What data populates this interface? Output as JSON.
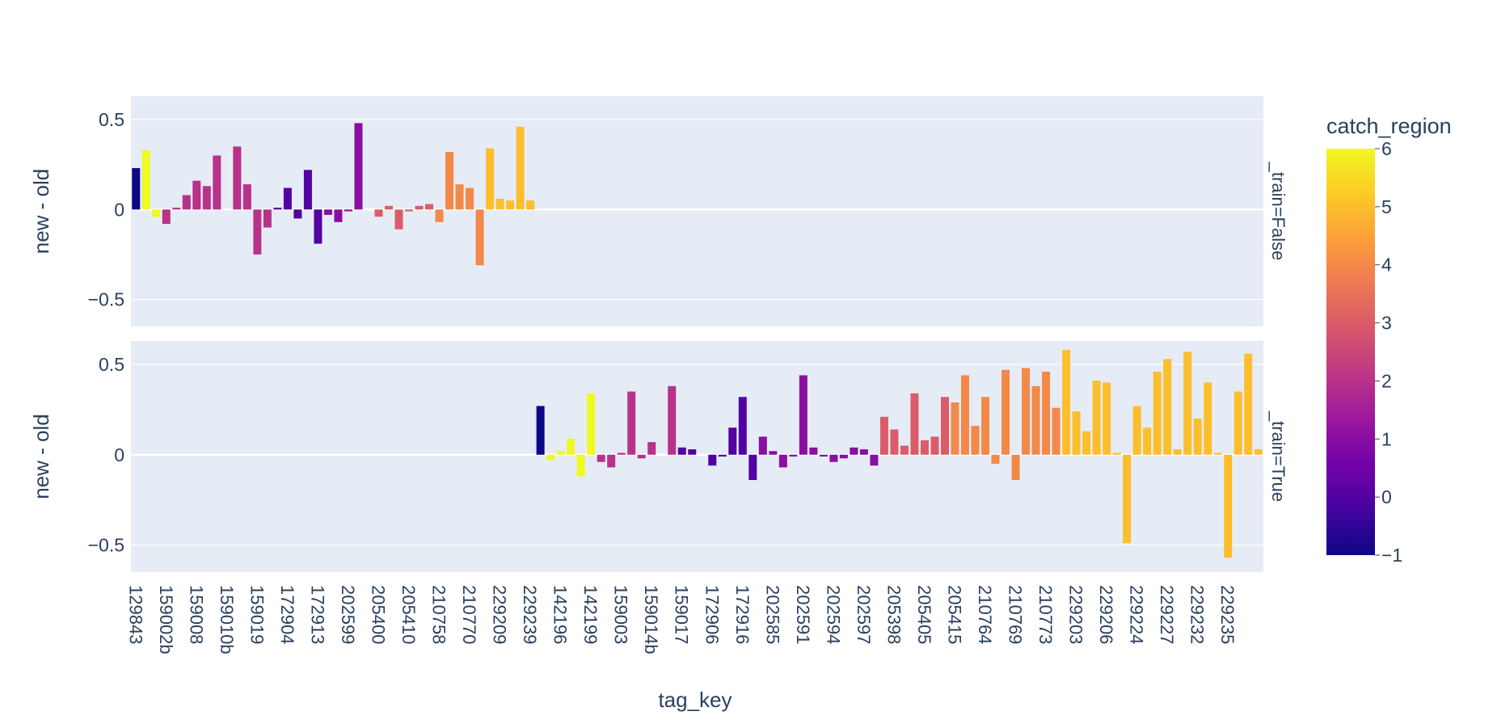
{
  "chart_data": {
    "type": "bar",
    "xlabel": "tag_key",
    "ylabel": "new - old",
    "ylim": [
      -0.65,
      0.63
    ],
    "yticks": [
      -0.5,
      0,
      0.5
    ],
    "ytick_labels": [
      "−0.5",
      "0",
      "0.5"
    ],
    "xtick_labels": [
      "129843",
      "159002b",
      "159008",
      "159010b",
      "159019",
      "172904",
      "172913",
      "202599",
      "205400",
      "205410",
      "210758",
      "210770",
      "229209",
      "229239",
      "142196",
      "142199",
      "159003",
      "159014b",
      "159017",
      "172906",
      "172916",
      "202585",
      "202591",
      "202594",
      "202597",
      "205398",
      "205405",
      "205415",
      "210764",
      "210769",
      "210773",
      "229203",
      "229206",
      "229224",
      "229227",
      "229232",
      "229235"
    ],
    "facets": [
      {
        "label": "_train=False",
        "bars": [
          {
            "c": 0,
            "v": 0.23,
            "r": -1
          },
          {
            "c": 1,
            "v": 0.33,
            "r": 6
          },
          {
            "c": 2,
            "v": -0.04,
            "r": 6
          },
          {
            "c": 3,
            "v": -0.08,
            "r": 2
          },
          {
            "c": 4,
            "v": 0.01,
            "r": 2
          },
          {
            "c": 5,
            "v": 0.08,
            "r": 2
          },
          {
            "c": 6,
            "v": 0.16,
            "r": 2
          },
          {
            "c": 7,
            "v": 0.13,
            "r": 2
          },
          {
            "c": 8,
            "v": 0.3,
            "r": 2
          },
          {
            "c": 10,
            "v": 0.35,
            "r": 2
          },
          {
            "c": 11,
            "v": 0.14,
            "r": 2
          },
          {
            "c": 12,
            "v": -0.25,
            "r": 2
          },
          {
            "c": 13,
            "v": -0.1,
            "r": 2
          },
          {
            "c": 14,
            "v": 0.01,
            "r": 0
          },
          {
            "c": 15,
            "v": 0.12,
            "r": 0
          },
          {
            "c": 16,
            "v": -0.05,
            "r": 0
          },
          {
            "c": 17,
            "v": 0.22,
            "r": 0
          },
          {
            "c": 18,
            "v": -0.19,
            "r": 0
          },
          {
            "c": 19,
            "v": -0.03,
            "r": 1
          },
          {
            "c": 20,
            "v": -0.07,
            "r": 1
          },
          {
            "c": 21,
            "v": -0.01,
            "r": 1
          },
          {
            "c": 22,
            "v": 0.48,
            "r": 1
          },
          {
            "c": 24,
            "v": -0.04,
            "r": 3
          },
          {
            "c": 25,
            "v": 0.02,
            "r": 3
          },
          {
            "c": 26,
            "v": -0.11,
            "r": 3
          },
          {
            "c": 27,
            "v": -0.01,
            "r": 3
          },
          {
            "c": 28,
            "v": 0.02,
            "r": 3
          },
          {
            "c": 29,
            "v": 0.03,
            "r": 3
          },
          {
            "c": 30,
            "v": -0.07,
            "r": 4
          },
          {
            "c": 31,
            "v": 0.32,
            "r": 4
          },
          {
            "c": 32,
            "v": 0.14,
            "r": 4
          },
          {
            "c": 33,
            "v": 0.12,
            "r": 4
          },
          {
            "c": 34,
            "v": -0.31,
            "r": 4
          },
          {
            "c": 35,
            "v": 0.34,
            "r": 5
          },
          {
            "c": 36,
            "v": 0.06,
            "r": 5
          },
          {
            "c": 37,
            "v": 0.05,
            "r": 5
          },
          {
            "c": 38,
            "v": 0.46,
            "r": 5
          },
          {
            "c": 39,
            "v": 0.05,
            "r": 5
          }
        ]
      },
      {
        "label": "_train=True",
        "bars": [
          {
            "c": 40,
            "v": 0.27,
            "r": -1
          },
          {
            "c": 41,
            "v": -0.03,
            "r": 6
          },
          {
            "c": 42,
            "v": 0.02,
            "r": 6
          },
          {
            "c": 43,
            "v": 0.09,
            "r": 6
          },
          {
            "c": 44,
            "v": -0.12,
            "r": 6
          },
          {
            "c": 45,
            "v": 0.34,
            "r": 6
          },
          {
            "c": 46,
            "v": -0.04,
            "r": 2
          },
          {
            "c": 47,
            "v": -0.07,
            "r": 2
          },
          {
            "c": 48,
            "v": 0.01,
            "r": 2
          },
          {
            "c": 49,
            "v": 0.35,
            "r": 2
          },
          {
            "c": 50,
            "v": -0.02,
            "r": 2
          },
          {
            "c": 51,
            "v": 0.07,
            "r": 2
          },
          {
            "c": 53,
            "v": 0.38,
            "r": 2
          },
          {
            "c": 54,
            "v": 0.04,
            "r": 0
          },
          {
            "c": 55,
            "v": 0.03,
            "r": 0
          },
          {
            "c": 57,
            "v": -0.06,
            "r": 0
          },
          {
            "c": 58,
            "v": -0.01,
            "r": 0
          },
          {
            "c": 59,
            "v": 0.15,
            "r": 0
          },
          {
            "c": 60,
            "v": 0.32,
            "r": 0
          },
          {
            "c": 61,
            "v": -0.14,
            "r": 0
          },
          {
            "c": 62,
            "v": 0.1,
            "r": 1
          },
          {
            "c": 63,
            "v": 0.02,
            "r": 1
          },
          {
            "c": 64,
            "v": -0.07,
            "r": 1
          },
          {
            "c": 65,
            "v": -0.01,
            "r": 1
          },
          {
            "c": 66,
            "v": 0.44,
            "r": 1
          },
          {
            "c": 67,
            "v": 0.04,
            "r": 1
          },
          {
            "c": 68,
            "v": -0.01,
            "r": 1
          },
          {
            "c": 69,
            "v": -0.04,
            "r": 1
          },
          {
            "c": 70,
            "v": -0.02,
            "r": 1
          },
          {
            "c": 71,
            "v": 0.04,
            "r": 1
          },
          {
            "c": 72,
            "v": 0.03,
            "r": 1
          },
          {
            "c": 73,
            "v": -0.06,
            "r": 1
          },
          {
            "c": 74,
            "v": 0.21,
            "r": 3
          },
          {
            "c": 75,
            "v": 0.14,
            "r": 3
          },
          {
            "c": 76,
            "v": 0.05,
            "r": 3
          },
          {
            "c": 77,
            "v": 0.34,
            "r": 3
          },
          {
            "c": 78,
            "v": 0.08,
            "r": 3
          },
          {
            "c": 79,
            "v": 0.1,
            "r": 3
          },
          {
            "c": 80,
            "v": 0.32,
            "r": 3
          },
          {
            "c": 81,
            "v": 0.29,
            "r": 4
          },
          {
            "c": 82,
            "v": 0.44,
            "r": 4
          },
          {
            "c": 83,
            "v": 0.16,
            "r": 4
          },
          {
            "c": 84,
            "v": 0.32,
            "r": 4
          },
          {
            "c": 85,
            "v": -0.05,
            "r": 4
          },
          {
            "c": 86,
            "v": 0.47,
            "r": 4
          },
          {
            "c": 87,
            "v": -0.14,
            "r": 4
          },
          {
            "c": 88,
            "v": 0.48,
            "r": 4
          },
          {
            "c": 89,
            "v": 0.38,
            "r": 4
          },
          {
            "c": 90,
            "v": 0.46,
            "r": 4
          },
          {
            "c": 91,
            "v": 0.26,
            "r": 4
          },
          {
            "c": 92,
            "v": 0.58,
            "r": 5
          },
          {
            "c": 93,
            "v": 0.24,
            "r": 5
          },
          {
            "c": 94,
            "v": 0.13,
            "r": 5
          },
          {
            "c": 95,
            "v": 0.41,
            "r": 5
          },
          {
            "c": 96,
            "v": 0.4,
            "r": 5
          },
          {
            "c": 97,
            "v": 0.01,
            "r": 5
          },
          {
            "c": 98,
            "v": -0.49,
            "r": 5
          },
          {
            "c": 99,
            "v": 0.27,
            "r": 5
          },
          {
            "c": 100,
            "v": 0.15,
            "r": 5
          },
          {
            "c": 101,
            "v": 0.46,
            "r": 5
          },
          {
            "c": 102,
            "v": 0.53,
            "r": 5
          },
          {
            "c": 103,
            "v": 0.03,
            "r": 5
          },
          {
            "c": 104,
            "v": 0.57,
            "r": 5
          },
          {
            "c": 105,
            "v": 0.2,
            "r": 5
          },
          {
            "c": 106,
            "v": 0.4,
            "r": 5
          },
          {
            "c": 107,
            "v": 0.01,
            "r": 5
          },
          {
            "c": 108,
            "v": -0.57,
            "r": 5
          },
          {
            "c": 109,
            "v": 0.35,
            "r": 5
          },
          {
            "c": 110,
            "v": 0.56,
            "r": 5
          },
          {
            "c": 111,
            "v": 0.03,
            "r": 5
          }
        ]
      }
    ],
    "colorbar": {
      "title": "catch_region",
      "range": [
        -1,
        6
      ],
      "ticks": [
        -1,
        0,
        1,
        2,
        3,
        4,
        5,
        6
      ],
      "tick_labels": [
        "−1",
        "0",
        "1",
        "2",
        "3",
        "4",
        "5",
        "6"
      ]
    },
    "colorscale": [
      "#0d0887",
      "#46039f",
      "#7201a8",
      "#9c179e",
      "#bd3786",
      "#d8576b",
      "#ed7953",
      "#fb9f3a",
      "#fdca26",
      "#f0f921"
    ]
  }
}
